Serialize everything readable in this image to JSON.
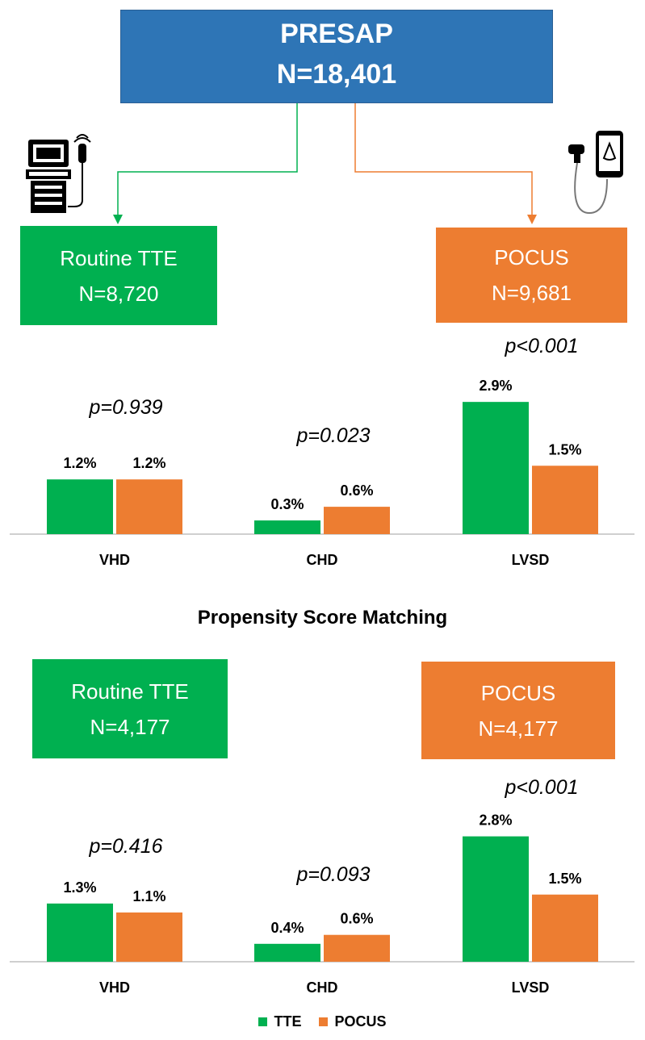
{
  "flow": {
    "root": {
      "title": "PRESAP",
      "n": "N=18,401"
    },
    "tte": {
      "label": "Routine TTE",
      "n": "N=8,720"
    },
    "pocus": {
      "label": "POCUS",
      "n": "N=9,681"
    },
    "psm_title": "Propensity Score Matching",
    "tte_matched": {
      "label": "Routine TTE",
      "n": "N=4,177"
    },
    "pocus_matched": {
      "label": "POCUS",
      "n": "N=4,177"
    }
  },
  "colors": {
    "tte": "#00b050",
    "pocus": "#ed7d31",
    "root": "#2e75b6"
  },
  "chart_data": [
    {
      "type": "bar",
      "categories": [
        "VHD",
        "CHD",
        "LVSD"
      ],
      "series": [
        {
          "name": "TTE",
          "values": [
            1.2,
            0.3,
            2.9
          ],
          "labels": [
            "1.2%",
            "0.3%",
            "2.9%"
          ]
        },
        {
          "name": "POCUS",
          "values": [
            1.2,
            0.6,
            1.5
          ],
          "labels": [
            "1.2%",
            "0.6%",
            "1.5%"
          ]
        }
      ],
      "p_values": [
        "p=0.939",
        "p=0.023",
        "p<0.001"
      ],
      "unit": "%"
    },
    {
      "type": "bar",
      "categories": [
        "VHD",
        "CHD",
        "LVSD"
      ],
      "series": [
        {
          "name": "TTE",
          "values": [
            1.3,
            0.4,
            2.8
          ],
          "labels": [
            "1.3%",
            "0.4%",
            "2.8%"
          ]
        },
        {
          "name": "POCUS",
          "values": [
            1.1,
            0.6,
            1.5
          ],
          "labels": [
            "1.1%",
            "0.6%",
            "1.5%"
          ]
        }
      ],
      "p_values": [
        "p=0.416",
        "p=0.093",
        "p<0.001"
      ],
      "unit": "%"
    }
  ],
  "legend": [
    {
      "name": "TTE",
      "color": "#00b050"
    },
    {
      "name": "POCUS",
      "color": "#ed7d31"
    }
  ]
}
